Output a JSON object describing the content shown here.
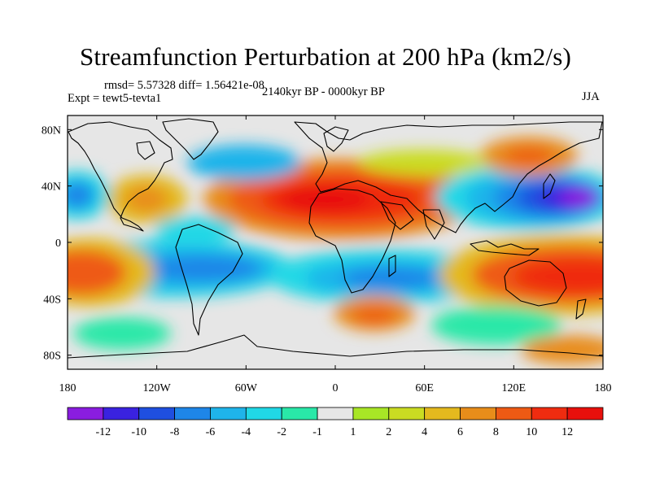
{
  "title": "Streamfunction Perturbation at 200 hPa (km2/s)",
  "rmsd_text": "rmsd= 5.57328 diff= 1.56421e-08",
  "expt_text": "Expt = tewt5-tevta1",
  "period_text": "2140kyr BP - 0000kyr BP",
  "season_text": "JJA",
  "lat_ticks": [
    {
      "label": "80N",
      "lat": 80
    },
    {
      "label": "40N",
      "lat": 40
    },
    {
      "label": "0",
      "lat": 0
    },
    {
      "label": "40S",
      "lat": -40
    },
    {
      "label": "80S",
      "lat": -80
    }
  ],
  "lon_ticks": [
    {
      "label": "180",
      "lon": -180
    },
    {
      "label": "120W",
      "lon": -120
    },
    {
      "label": "60W",
      "lon": -60
    },
    {
      "label": "0",
      "lon": 0
    },
    {
      "label": "60E",
      "lon": 60
    },
    {
      "label": "120E",
      "lon": 120
    },
    {
      "label": "180",
      "lon": 180
    }
  ],
  "colorbar": {
    "labels": [
      "-12",
      "-10",
      "-8",
      "-6",
      "-4",
      "-2",
      "-1",
      "1",
      "2",
      "4",
      "6",
      "8",
      "10",
      "12"
    ],
    "colors": [
      "#8a1de0",
      "#3a22e0",
      "#1f4fe0",
      "#1e86e8",
      "#1fb4ea",
      "#20d8e6",
      "#29e8a8",
      "#e6e6e6",
      "#a8e626",
      "#cadc22",
      "#e4b91e",
      "#e88d1a",
      "#ee5a14",
      "#ef2c10",
      "#e8100c"
    ]
  },
  "field_colors": {
    "land_outline": "#000000",
    "neutral": "#e6e6e6"
  }
}
